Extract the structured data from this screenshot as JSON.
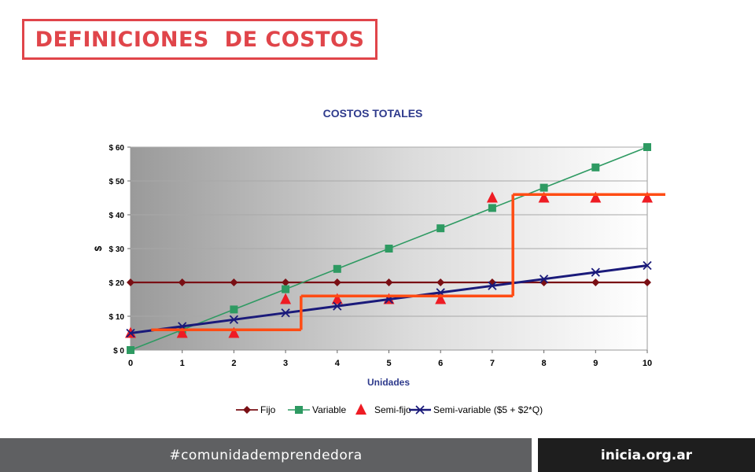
{
  "page": {
    "title": "DEFINICIONES  DE COSTOS",
    "footer_left": "#comunidademprendedora",
    "footer_right": "inicia.org.ar"
  },
  "colors": {
    "title_red": "#e0454a",
    "fijo": "#7a0f14",
    "variable": "#2e9a62",
    "semi_fijo": "#ee1c24",
    "semi_variable": "#1a1a7a",
    "step_line": "#ff4c14",
    "chart_title": "#2e3a8c"
  },
  "chart_data": {
    "type": "line",
    "title": "COSTOS TOTALES",
    "xlabel": "Unidades",
    "ylabel": "$",
    "x": [
      0,
      1,
      2,
      3,
      4,
      5,
      6,
      7,
      8,
      9,
      10
    ],
    "xlim": [
      0,
      10
    ],
    "ylim": [
      0,
      60
    ],
    "yticks": [
      0,
      10,
      20,
      30,
      40,
      50,
      60
    ],
    "ytick_labels": [
      "$ 0",
      "$ 10",
      "$ 20",
      "$ 30",
      "$ 40",
      "$ 50",
      "$ 60"
    ],
    "xtick_labels": [
      "0",
      "1",
      "2",
      "3",
      "4",
      "5",
      "6",
      "7",
      "8",
      "9",
      "10"
    ],
    "grid": true,
    "legend_position": "bottom",
    "series": [
      {
        "name": "Fijo",
        "marker": "diamond",
        "values": [
          20,
          20,
          20,
          20,
          20,
          20,
          20,
          20,
          20,
          20,
          20
        ]
      },
      {
        "name": "Variable",
        "marker": "square",
        "values": [
          0,
          6,
          12,
          18,
          24,
          30,
          36,
          42,
          48,
          54,
          60
        ]
      },
      {
        "name": "Semi-fijo",
        "marker": "triangle",
        "values": [
          5,
          5,
          5,
          15,
          15,
          15,
          15,
          45,
          45,
          45,
          45
        ]
      },
      {
        "name": "Semi-variable ($5 + $2*Q)",
        "marker": "x",
        "values": [
          5,
          7,
          9,
          11,
          13,
          15,
          17,
          19,
          21,
          23,
          25
        ]
      }
    ],
    "step_overlay": {
      "segments": [
        {
          "x_from": 0.4,
          "x_to": 3.3,
          "y": 6
        },
        {
          "x_from": 3.3,
          "x_to": 7.4,
          "y": 16
        },
        {
          "x_from": 7.4,
          "x_to": 10.35,
          "y": 46
        }
      ],
      "risers": [
        {
          "x": 3.3,
          "y_from": 6,
          "y_to": 16
        },
        {
          "x": 7.4,
          "y_from": 16,
          "y_to": 46
        }
      ]
    }
  }
}
